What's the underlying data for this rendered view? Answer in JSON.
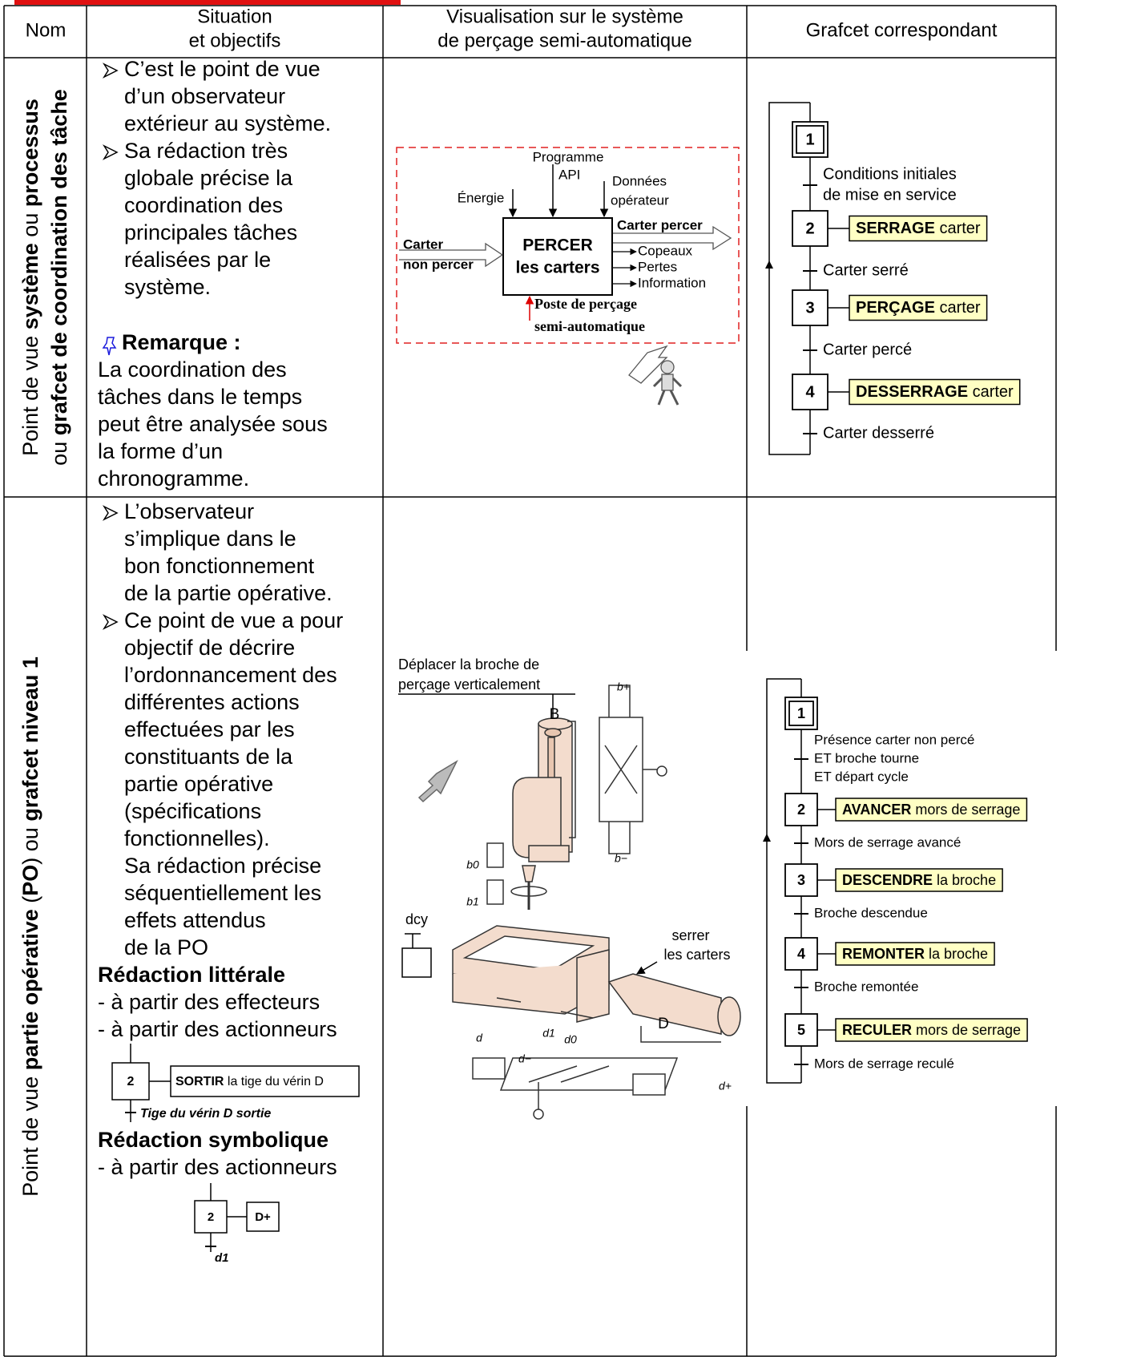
{
  "table": {
    "headers": [
      [
        "Nom"
      ],
      [
        "Situation",
        "et objectifs"
      ],
      [
        "Visualisation sur le système",
        "de perçage semi-automatique"
      ],
      [
        "Grafcet correspondant"
      ]
    ],
    "rows": [
      {
        "name": [
          [
            "Point de vue ",
            "système",
            " ou ",
            "processus"
          ],
          [
            "ou ",
            "grafcet de coordination des tâche"
          ]
        ],
        "situation": {
          "bullets": [
            [
              "C’est le point de vue",
              "d’un observateur",
              "extérieur au système."
            ],
            [
              "Sa rédaction très",
              "globale précise la",
              "coordination des",
              "principales tâches",
              "réalisées par le",
              "système."
            ]
          ],
          "remark_title": "Remarque :",
          "remark": [
            "La coordination des",
            "tâches dans le temps",
            "peut être analysée sous",
            "la forme d’un",
            "chronogramme."
          ]
        },
        "visualisation": {
          "program": [
            "Programme",
            "API"
          ],
          "energy": "Énergie",
          "operator": [
            "Données",
            "opérateur"
          ],
          "input": [
            "Carter",
            "non percer"
          ],
          "output": "Carter percer",
          "function": [
            "PERCER",
            "les carters"
          ],
          "by_products": [
            "Copeaux",
            "Pertes",
            "Information"
          ],
          "support": [
            "Poste de perçage",
            "semi-automatique"
          ]
        },
        "grafcet": {
          "steps": [
            1,
            2,
            3,
            4
          ],
          "transitions": [
            [
              "Conditions initiales",
              "de mise en service"
            ],
            [
              "Carter serré"
            ],
            [
              "Carter percé"
            ],
            [
              "Carter desserré"
            ]
          ],
          "actions": [
            [
              "SERRAGE",
              " carter"
            ],
            [
              "PERÇAGE",
              " carter"
            ],
            [
              "DESSERRAGE",
              " carter"
            ]
          ]
        }
      },
      {
        "name": [
          [
            "Point de vue ",
            "partie opérative",
            " (",
            "PO",
            ") ou  ",
            "grafcet niveau 1"
          ]
        ],
        "situation": {
          "bullets": [
            [
              "L’observateur",
              "s’implique dans le",
              "bon fonctionnement",
              "de la partie opérative."
            ],
            [
              "Ce point de vue a pour",
              "objectif de décrire",
              "l’ordonnancement des",
              "différentes actions",
              "effectuées par les",
              "constituants de la",
              "partie opérative",
              "(spécifications",
              "fonctionnelles)."
            ]
          ],
          "continuation": [
            "Sa rédaction précise",
            "séquentiellement les",
            "effets attendus",
            "de la PO"
          ],
          "literal_title": "Rédaction littérale",
          "literal": [
            "- à partir des effecteurs",
            "- à partir des actionneurs"
          ],
          "literal_example": {
            "step": 2,
            "action": [
              "SORTIR",
              " la tige du vérin D"
            ],
            "transition": "Tige du vérin D sortie"
          },
          "symbolic_title": "Rédaction symbolique",
          "symbolic": [
            "- à partir des actionneurs"
          ],
          "symbolic_example": {
            "step": 2,
            "action": "D+",
            "transition": "d1"
          }
        },
        "visualisation": {
          "caption": [
            "Déplacer la broche de",
            "perçage verticalement"
          ],
          "spindle": "B",
          "cylinder": "D",
          "start": "dcy",
          "clamp": [
            "serrer",
            "les carters"
          ],
          "sensors_b": [
            "b+",
            "b0",
            "b1",
            "b−"
          ],
          "sensors_d": [
            "d",
            "d1",
            "d0",
            "d−",
            "d+"
          ]
        },
        "grafcet": {
          "steps": [
            1,
            2,
            3,
            4,
            5
          ],
          "transitions": [
            [
              "Présence carter non percé",
              "ET broche tourne",
              "ET départ cycle"
            ],
            [
              "Mors de serrage avancé"
            ],
            [
              "Broche descendue"
            ],
            [
              "Broche remontée"
            ],
            [
              "Mors de serrage reculé"
            ]
          ],
          "actions": [
            [
              "AVANCER",
              " mors de serrage"
            ],
            [
              "DESCENDRE",
              " la broche"
            ],
            [
              "REMONTER",
              " la broche"
            ],
            [
              "RECULER",
              " mors de serrage"
            ]
          ]
        }
      }
    ]
  }
}
